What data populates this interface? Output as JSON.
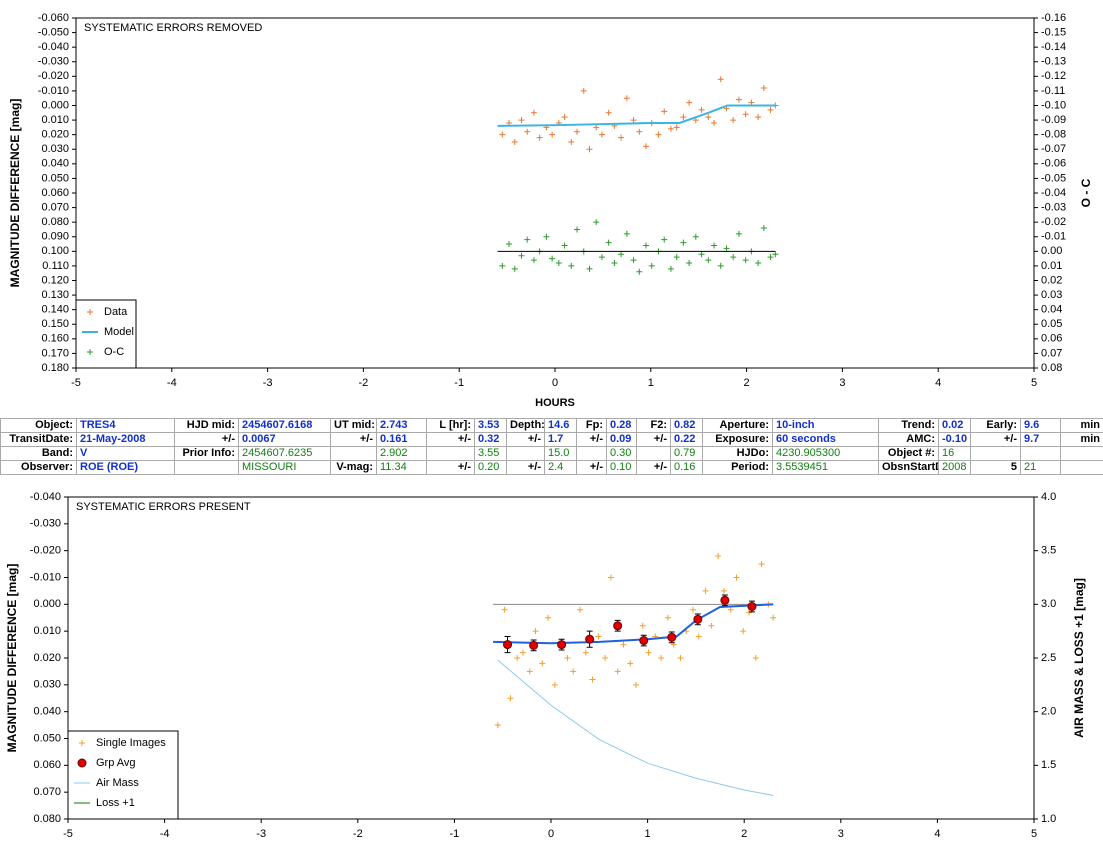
{
  "chart_data": [
    {
      "type": "scatter",
      "title": "SYSTEMATIC ERRORS REMOVED",
      "xlabel": "HOURS",
      "ylabel": "MAGNITUDE DIFFERENCE [mag]",
      "y2label": "O - C",
      "legend": "lower left",
      "xlim": [
        -5,
        5
      ],
      "xticks": [
        -5,
        -4,
        -3,
        -2,
        -1,
        0,
        1,
        2,
        3,
        4,
        5
      ],
      "ylim": [
        0.18,
        -0.06
      ],
      "yticks": [
        {
          "value": -0.06,
          "label": "-0.060"
        },
        {
          "value": -0.05,
          "label": "-0.050"
        },
        {
          "value": -0.04,
          "label": "-0.040"
        },
        {
          "value": -0.03,
          "label": "-0.030"
        },
        {
          "value": -0.02,
          "label": "-0.020"
        },
        {
          "value": -0.01,
          "label": "-0.010"
        },
        {
          "value": 0,
          "label": "0.000"
        },
        {
          "value": 0.01,
          "label": "0.010"
        },
        {
          "value": 0.02,
          "label": "0.020"
        },
        {
          "value": 0.03,
          "label": "0.030"
        },
        {
          "value": 0.04,
          "label": "0.040"
        },
        {
          "value": 0.05,
          "label": "0.050"
        },
        {
          "value": 0.06,
          "label": "0.060"
        },
        {
          "value": 0.07,
          "label": "0.070"
        },
        {
          "value": 0.08,
          "label": "0.080"
        },
        {
          "value": 0.09,
          "label": "0.090"
        },
        {
          "value": 0.1,
          "label": "0.100"
        },
        {
          "value": 0.11,
          "label": "0.110"
        },
        {
          "value": 0.12,
          "label": "0.120"
        },
        {
          "value": 0.13,
          "label": "0.130"
        },
        {
          "value": 0.14,
          "label": "0.140"
        },
        {
          "value": 0.15,
          "label": "0.150"
        },
        {
          "value": 0.16,
          "label": "0.160"
        },
        {
          "value": 0.17,
          "label": "0.170"
        },
        {
          "value": 0.18,
          "label": "0.180"
        }
      ],
      "y2lim": [
        0.08,
        -0.16
      ],
      "y2ticks": [
        -0.16,
        -0.15,
        -0.14,
        -0.13,
        -0.12,
        -0.11,
        {
          "value": -0.1,
          "label": "-0.10"
        },
        -0.09,
        -0.08,
        -0.07,
        -0.06,
        -0.05,
        -0.04,
        -0.03,
        -0.02,
        -0.01,
        {
          "value": 0,
          "label": "0.00"
        },
        0.01,
        0.02,
        0.03,
        0.04,
        0.05,
        0.06,
        0.07,
        0.08
      ],
      "x": [
        -0.55,
        -0.48,
        -0.42,
        -0.35,
        -0.29,
        -0.22,
        -0.16,
        -0.09,
        -0.03,
        0.04,
        0.1,
        0.17,
        0.23,
        0.3,
        0.36,
        0.43,
        0.49,
        0.56,
        0.62,
        0.69,
        0.75,
        0.82,
        0.88,
        0.95,
        1.01,
        1.08,
        1.14,
        1.21,
        1.27,
        1.34,
        1.4,
        1.47,
        1.53,
        1.6,
        1.66,
        1.73,
        1.79,
        1.86,
        1.92,
        1.99,
        2.05,
        2.12,
        2.18,
        2.25,
        2.3
      ],
      "series": [
        {
          "name": "Data",
          "color": "#e8772e",
          "mode": "markers",
          "marker": "plus",
          "values": [
            0.02,
            0.012,
            0.025,
            0.01,
            0.018,
            0.005,
            0.022,
            0.015,
            0.02,
            0.012,
            0.008,
            0.025,
            0.018,
            -0.01,
            0.03,
            0.015,
            0.02,
            0.005,
            0.014,
            0.022,
            -0.005,
            0.01,
            0.018,
            0.028,
            0.012,
            0.02,
            0.004,
            0.016,
            0.015,
            0.008,
            -0.002,
            0.01,
            0.003,
            0.008,
            0.012,
            -0.018,
            0.002,
            0.01,
            -0.004,
            0.006,
            -0.002,
            0.008,
            -0.012,
            0.003,
            0.0
          ]
        },
        {
          "name": "Model",
          "color": "#3ab4e6",
          "mode": "line",
          "width": 2,
          "x": [
            -0.6,
            0,
            1.0,
            1.3,
            1.6,
            1.8,
            2.3
          ],
          "values": [
            0.014,
            0.0135,
            0.012,
            0.012,
            0.005,
            0.0,
            0.0
          ]
        },
        {
          "name": "O-C",
          "color": "#2e9a2e",
          "mode": "markers",
          "marker": "plus",
          "axis": "y2",
          "values": [
            0.01,
            -0.005,
            0.012,
            0.003,
            -0.008,
            0.006,
            0,
            -0.01,
            0.005,
            0.008,
            -0.004,
            0.01,
            -0.015,
            0,
            0.012,
            -0.02,
            0.004,
            -0.006,
            0.008,
            0.002,
            -0.012,
            0.006,
            0.014,
            -0.004,
            0.01,
            0,
            -0.008,
            0.012,
            0.004,
            -0.006,
            0.008,
            -0.01,
            0.002,
            0.006,
            -0.004,
            0.01,
            -0.002,
            0.004,
            -0.012,
            0.006,
            0,
            0.008,
            -0.016,
            0.004,
            0.002
          ]
        },
        {
          "color": "#000000",
          "mode": "line",
          "width": 1,
          "axis": "y2",
          "x": [
            -0.6,
            2.3
          ],
          "values": [
            0,
            0
          ]
        }
      ]
    },
    {
      "type": "scatter",
      "title": "SYSTEMATIC ERRORS PRESENT",
      "ylabel": "MAGNITUDE DIFFERENCE [mag]",
      "y2label": "AIR MASS & LOSS +1 [mag]",
      "legend": "lower left",
      "xlim": [
        -5,
        5
      ],
      "xticks": [
        -5,
        -4,
        -3,
        -2,
        -1,
        0,
        1,
        2,
        3,
        4,
        5
      ],
      "ylim": [
        0.08,
        -0.04
      ],
      "yticks": [
        {
          "value": -0.04,
          "label": "-0.040"
        },
        {
          "value": -0.03,
          "label": "-0.030"
        },
        {
          "value": -0.02,
          "label": "-0.020"
        },
        {
          "value": -0.01,
          "label": "-0.010"
        },
        {
          "value": 0,
          "label": "0.000"
        },
        {
          "value": 0.01,
          "label": "0.010"
        },
        {
          "value": 0.02,
          "label": "0.020"
        },
        {
          "value": 0.03,
          "label": "0.030"
        },
        {
          "value": 0.04,
          "label": "0.040"
        },
        {
          "value": 0.05,
          "label": "0.050"
        },
        {
          "value": 0.06,
          "label": "0.060"
        },
        {
          "value": 0.07,
          "label": "0.070"
        },
        {
          "value": 0.08,
          "label": "0.080"
        }
      ],
      "y2lim": [
        1.0,
        4.0
      ],
      "y2ticks": [
        {
          "value": 4,
          "label": "4.0"
        },
        3.5,
        {
          "value": 3,
          "label": "3.0"
        },
        2.5,
        {
          "value": 2,
          "label": "2.0"
        },
        1.5,
        {
          "value": 1,
          "label": "1.0"
        }
      ],
      "x": [
        -0.55,
        -0.48,
        -0.42,
        -0.35,
        -0.29,
        -0.22,
        -0.16,
        -0.09,
        -0.03,
        0.04,
        0.1,
        0.17,
        0.23,
        0.3,
        0.36,
        0.43,
        0.49,
        0.56,
        0.62,
        0.69,
        0.75,
        0.82,
        0.88,
        0.95,
        1.01,
        1.08,
        1.14,
        1.21,
        1.27,
        1.34,
        1.4,
        1.47,
        1.53,
        1.6,
        1.66,
        1.73,
        1.79,
        1.86,
        1.92,
        1.99,
        2.05,
        2.12,
        2.18,
        2.25,
        2.3
      ],
      "series": [
        {
          "color": "#888888",
          "mode": "line",
          "width": 1,
          "x": [
            -0.6,
            2.3
          ],
          "values": [
            0,
            0
          ]
        },
        {
          "name": "Single Images",
          "color": "#f0a030",
          "mode": "markers",
          "marker": "plus",
          "values": [
            0.045,
            0.002,
            0.035,
            0.02,
            0.018,
            0.025,
            0.01,
            0.022,
            0.005,
            0.03,
            0.015,
            0.02,
            0.025,
            0.002,
            0.018,
            0.028,
            0.012,
            0.02,
            -0.01,
            0.025,
            0.015,
            0.022,
            0.03,
            0.008,
            0.018,
            0.012,
            0.02,
            0.005,
            0.015,
            0.02,
            0.01,
            0.002,
            0.012,
            -0.005,
            0.008,
            -0.018,
            -0.005,
            0.002,
            -0.01,
            0.01,
            0.003,
            0.02,
            -0.015,
            0.0,
            0.005
          ]
        },
        {
          "color": "#2060e0",
          "mode": "line",
          "width": 2,
          "x": [
            -0.6,
            0,
            0.5,
            1.0,
            1.3,
            1.5,
            1.75,
            2.3
          ],
          "values": [
            0.014,
            0.0145,
            0.014,
            0.013,
            0.012,
            0.006,
            0.001,
            0.0
          ]
        },
        {
          "name": "Grp Avg",
          "color": "#e00000",
          "mode": "markers",
          "marker": "circle",
          "x": [
            -0.45,
            -0.18,
            0.11,
            0.4,
            0.69,
            0.96,
            1.25,
            1.52,
            1.8,
            2.08
          ],
          "values": [
            0.015,
            0.0153,
            0.015,
            0.013,
            0.008,
            0.0135,
            0.0123,
            0.0056,
            -0.0015,
            0.0008
          ],
          "errors": [
            0.003,
            0.002,
            0.002,
            0.003,
            0.002,
            0.002,
            0.002,
            0.002,
            0.002,
            0.002
          ]
        },
        {
          "name": "Air Mass",
          "color": "#8ec8f0",
          "mode": "line",
          "width": 1,
          "axis": "y2",
          "x": [
            -0.55,
            0,
            0.5,
            1.0,
            1.5,
            2.0,
            2.3
          ],
          "values": [
            2.48,
            2.06,
            1.74,
            1.52,
            1.38,
            1.27,
            1.22
          ]
        },
        {
          "name": "Loss +1",
          "color": "#008000",
          "mode": "line",
          "width": 1,
          "axis": "y2",
          "x": [],
          "values": []
        }
      ]
    }
  ],
  "table": {
    "rows": [
      [
        "Object:",
        "TRES4",
        "HJD mid:",
        "2454607.6168",
        "UT mid:",
        "2.743",
        "L [hr]:",
        "3.53",
        "Depth:",
        "14.6",
        "Fp:",
        "0.28",
        "F2:",
        "0.82",
        "Aperture:",
        "10-inch",
        "Trend:",
        "0.02",
        "Early:",
        "9.6",
        "min"
      ],
      [
        "TransitDate:",
        "21-May-2008",
        "+/-",
        "0.0067",
        "+/-",
        "0.161",
        "+/-",
        "0.32",
        "+/-",
        "1.7",
        "+/-",
        "0.09",
        "+/-",
        "0.22",
        "Exposure:",
        "60 seconds",
        "AMC:",
        "-0.10",
        "+/-",
        "9.7",
        "min"
      ],
      [
        "Band:",
        "V",
        "Prior Info:",
        "2454607.6235",
        null,
        "2.902",
        null,
        "3.55",
        null,
        "15.0",
        null,
        "0.30",
        null,
        "0.79",
        "HJDo:",
        "4230.905300",
        "Object #:",
        "16",
        null,
        null,
        null
      ],
      [
        "Observer:",
        "ROE (ROE)",
        null,
        "MISSOURI",
        "V-mag:",
        "11.34",
        "+/-",
        "0.20",
        "+/-",
        "2.4",
        "+/-",
        "0.10",
        "+/-",
        "0.16",
        "Period:",
        "3.5539451",
        "ObsnStartDate:",
        "2008",
        "5",
        "21",
        null
      ]
    ]
  }
}
